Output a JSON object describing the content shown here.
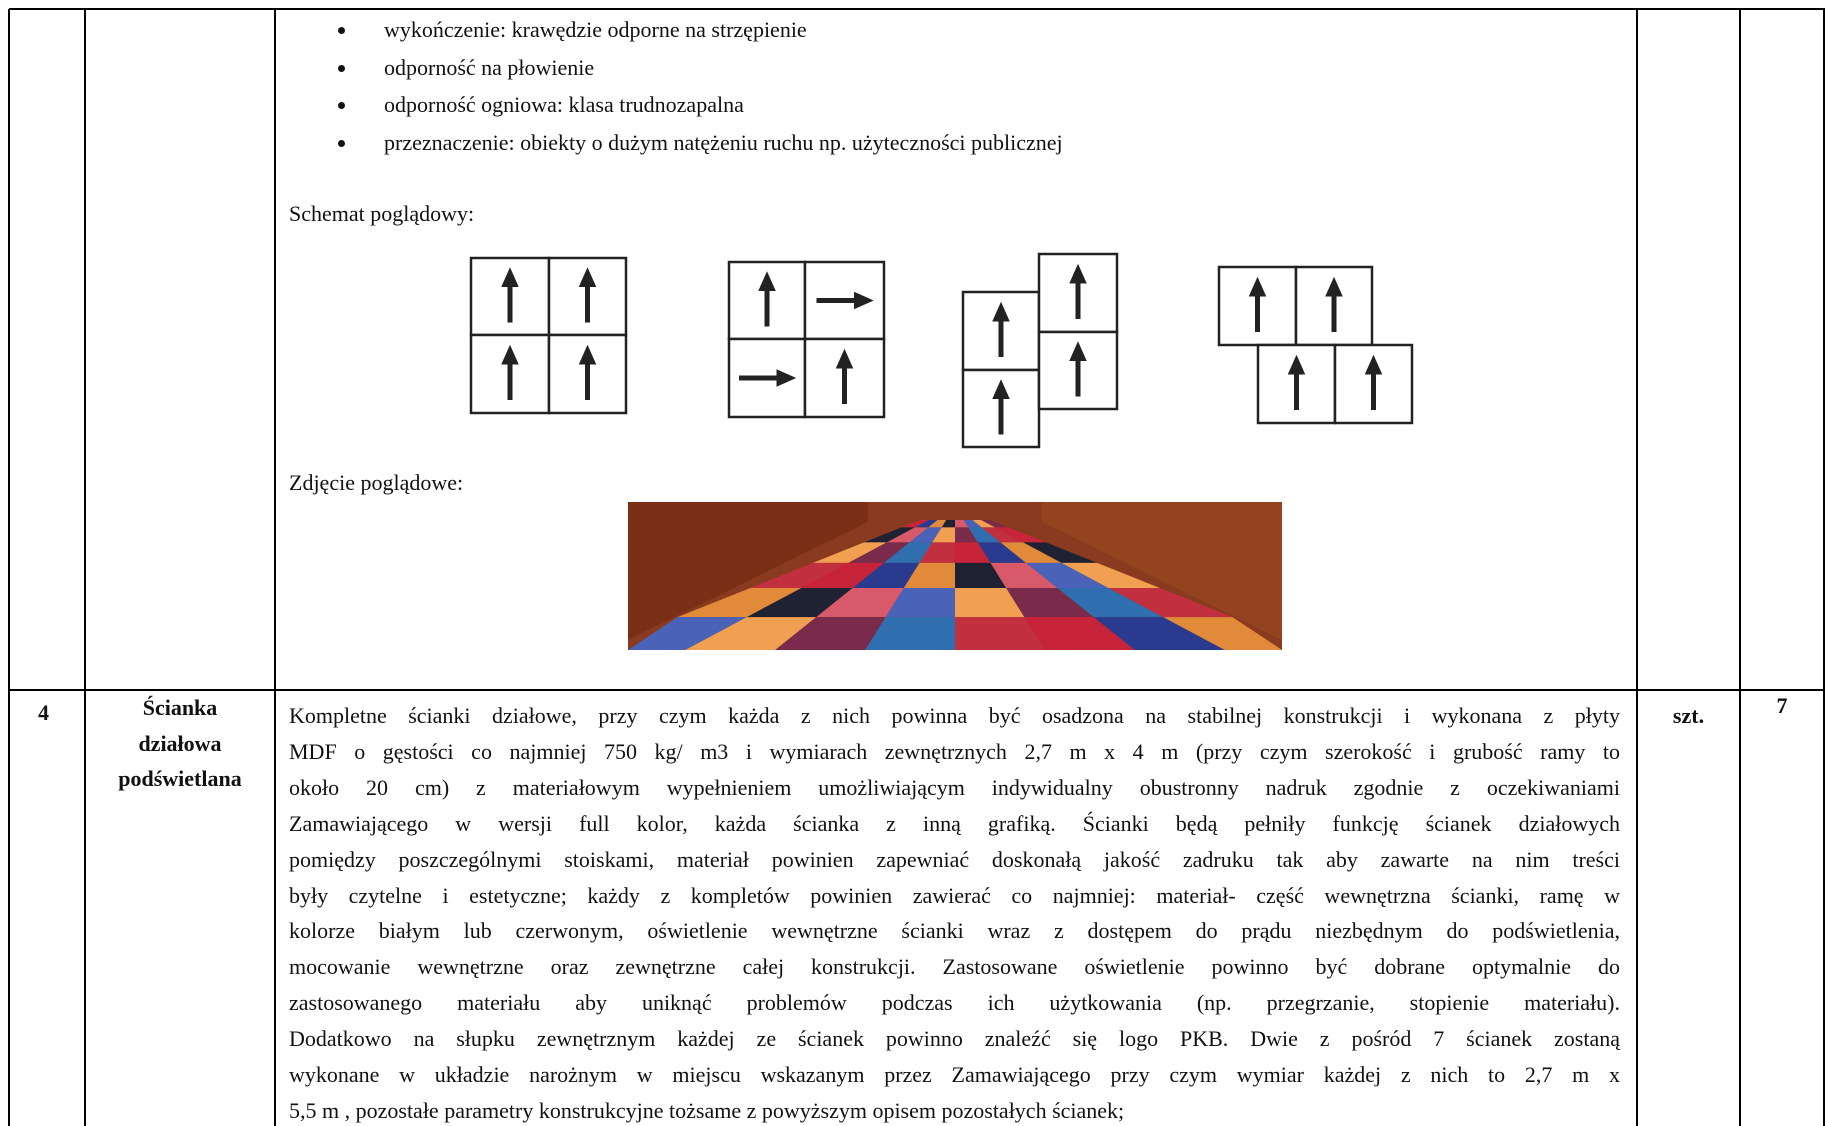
{
  "rows": [
    {
      "bullets": [
        "wykończenie: krawędzie odporne na strzępienie",
        "odporność na płowienie",
        "odporność ogniowa: klasa trudnozapalna",
        "przeznaczenie: obiekty o dużym natężeniu ruchu np. użyteczności publicznej"
      ],
      "schema_label": "Schemat poglądowy:",
      "photo_label": "Zdjęcie poglądowe:"
    },
    {
      "number": "4",
      "name": [
        "Ścianka",
        "działowa",
        "podświetlana"
      ],
      "description": [
        "Kompletne ścianki działowe, przy czym każda z nich powinna być osadzona na stabilnej konstrukcji i wykonana z płyty",
        "MDF o gęstości co najmniej 750 kg/ m3 i wymiarach zewnętrznych 2,7 m x 4 m (przy czym szerokość i grubość ramy to",
        "około 20 cm) z materiałowym wypełnieniem umożliwiającym indywidualny obustronny nadruk zgodnie z oczekiwaniami",
        "Zamawiającego w wersji full kolor, każda ścianka z inną grafiką. Ścianki będą pełniły funkcję ścianek działowych",
        "pomiędzy poszczególnymi stoiskami, materiał powinien zapewniać doskonałą jakość zadruku tak aby zawarte na nim treści",
        "były czytelne i estetyczne; każdy z kompletów powinien zawierać co najmniej: materiał- część wewnętrzna ścianki, ramę w",
        "kolorze białym lub czerwonym, oświetlenie wewnętrzne ścianki wraz z dostępem do prądu niezbędnym do podświetlenia,",
        "mocowanie wewnętrzne oraz zewnętrzne całej konstrukcji. Zastosowane oświetlenie powinno być dobrane optymalnie do",
        "zastosowanego materiału aby uniknąć problemów podczas ich użytkowania (np. przegrzanie, stopienie materiału).",
        "Dodatkowo na słupku zewnętrznym każdej ze ścianek powinno znaleźć się logo PKB. Dwie z pośród 7 ścianek zostaną",
        "wykonane w układzie narożnym w  miejscu wskazanym przez Zamawiającego przy czym wymiar każdej z nich to 2,7 m x",
        "5,5 m , pozostałe parametry konstrukcyjne tożsame z powyższym opisem pozostałych ścianek;"
      ],
      "unit": "szt.",
      "quantity": "7"
    }
  ]
}
